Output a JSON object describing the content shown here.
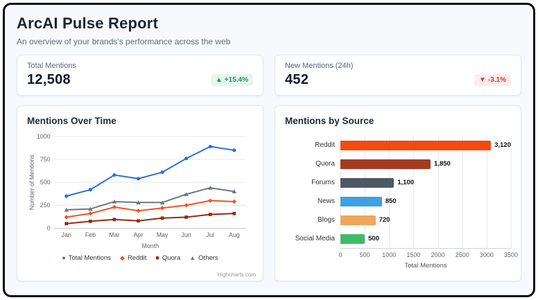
{
  "header": {
    "title": "ArcAI Pulse Report",
    "subtitle": "An overview of your brands's performance across the web"
  },
  "kpis": [
    {
      "label": "Total Mentions",
      "value": "12,508",
      "change": "+15.4%",
      "direction": "up",
      "color": "#12a150"
    },
    {
      "label": "New Mentions (24h)",
      "value": "452",
      "change": "-3.1%",
      "direction": "down",
      "color": "#e03131"
    }
  ],
  "chart_data": [
    {
      "type": "line",
      "title": "Mentions Over Time",
      "x": [
        "Jan",
        "Feb",
        "Mar",
        "Apr",
        "May",
        "Jun",
        "Jul",
        "Aug"
      ],
      "xlabel": "Month",
      "ylabel": "Number of Mentions",
      "ylim": [
        0,
        1000
      ],
      "yticks": [
        0,
        250,
        500,
        750,
        1000
      ],
      "grid": true,
      "legend_position": "bottom",
      "credit": "Highcharts.com",
      "series": [
        {
          "name": "Total Mentions",
          "color": "#2a6fdb",
          "marker": "circle",
          "values": [
            350,
            420,
            580,
            540,
            610,
            760,
            890,
            850
          ]
        },
        {
          "name": "Reddit",
          "color": "#f4511e",
          "marker": "diamond",
          "values": [
            120,
            160,
            230,
            190,
            220,
            250,
            300,
            290
          ]
        },
        {
          "name": "Quora",
          "color": "#922b12",
          "marker": "square",
          "values": [
            50,
            75,
            95,
            80,
            110,
            120,
            150,
            160
          ]
        },
        {
          "name": "Others",
          "color": "#6e7781",
          "marker": "triangle",
          "values": [
            200,
            210,
            290,
            280,
            280,
            370,
            440,
            400
          ]
        }
      ]
    },
    {
      "type": "bar",
      "title": "Mentions by Source",
      "orientation": "horizontal",
      "categories": [
        "Reddit",
        "Quora",
        "Forums",
        "News",
        "Blogs",
        "Social Media"
      ],
      "values": [
        3120,
        1850,
        1100,
        850,
        720,
        500
      ],
      "value_labels": [
        "3,120",
        "1,850",
        "1,100",
        "850",
        "720",
        "500"
      ],
      "colors": [
        "#f44a0c",
        "#a33b20",
        "#4d5a66",
        "#3fa0e6",
        "#f2a45a",
        "#3fba6c"
      ],
      "xlabel": "Total Mentions",
      "xlim": [
        0,
        3500
      ],
      "xticks": [
        0,
        500,
        1000,
        1500,
        2000,
        2500,
        3000,
        3500
      ],
      "grid": true
    }
  ]
}
